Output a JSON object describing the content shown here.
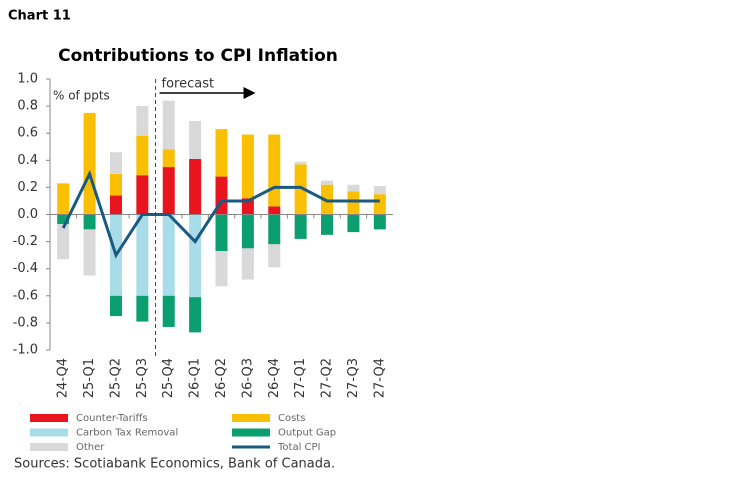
{
  "header": "Chart 11",
  "chart_data": {
    "type": "bar-stacked-line",
    "title": "Contributions to CPI Inflation",
    "y_label": "% of ppts",
    "annotation": "forecast",
    "source": "Sources: Scotiabank Economics, Bank of Canada.",
    "categories": [
      "24-Q4",
      "25-Q1",
      "25-Q2",
      "25-Q3",
      "25-Q4",
      "26-Q1",
      "26-Q2",
      "26-Q3",
      "26-Q4",
      "27-Q1",
      "27-Q2",
      "27-Q3",
      "27-Q4"
    ],
    "forecast_start": 4,
    "ylim": [
      -1,
      1
    ],
    "yticks": [
      {
        "value": -1,
        "label": "-1.0"
      },
      {
        "value": -0.8,
        "label": "-0.8"
      },
      {
        "value": -0.6,
        "label": "-0.6"
      },
      {
        "value": -0.4,
        "label": "-0.4"
      },
      {
        "value": -0.2,
        "label": "-0.2"
      },
      {
        "value": 0,
        "label": "0.0"
      },
      {
        "value": 0.2,
        "label": "0.2"
      },
      {
        "value": 0.4,
        "label": "0.4"
      },
      {
        "value": 0.6,
        "label": "0.6"
      },
      {
        "value": 0.8,
        "label": "0.8"
      },
      {
        "value": 1,
        "label": "1.0"
      }
    ],
    "series": [
      {
        "name": "Counter-Tariffs",
        "color": "#e8141e",
        "kind": "bar",
        "values": [
          0,
          0,
          0.14,
          0.29,
          0.35,
          0.41,
          0.28,
          0.12,
          0.06,
          0,
          0,
          0,
          0
        ]
      },
      {
        "name": "Costs",
        "color": "#f9bf00",
        "kind": "bar",
        "values": [
          0.23,
          0.75,
          0.16,
          0.29,
          0.13,
          0,
          0.35,
          0.47,
          0.53,
          0.37,
          0.22,
          0.17,
          0.15
        ]
      },
      {
        "name": "Carbon Tax Removal",
        "color": "#a8dce8",
        "kind": "bar",
        "values": [
          0,
          0,
          -0.6,
          -0.6,
          -0.6,
          -0.61,
          0,
          0,
          0,
          0,
          0,
          0,
          0
        ]
      },
      {
        "name": "Output Gap",
        "color": "#0b9e6e",
        "kind": "bar",
        "values": [
          -0.07,
          -0.11,
          -0.15,
          -0.19,
          -0.23,
          -0.26,
          -0.27,
          -0.25,
          -0.22,
          -0.18,
          -0.15,
          -0.13,
          -0.11
        ]
      },
      {
        "name": "Other",
        "color": "#d9d9d9",
        "kind": "bar",
        "values": [
          -0.26,
          -0.34,
          0.16,
          0.22,
          0.36,
          0.28,
          -0.26,
          -0.23,
          -0.17,
          0.02,
          0.03,
          0.05,
          0.06
        ]
      },
      {
        "name": "Total CPI",
        "color": "#1a5a80",
        "kind": "line",
        "values": [
          -0.1,
          0.3,
          -0.3,
          0,
          0,
          -0.2,
          0.1,
          0.1,
          0.2,
          0.2,
          0.1,
          0.1,
          0.1
        ]
      }
    ]
  }
}
